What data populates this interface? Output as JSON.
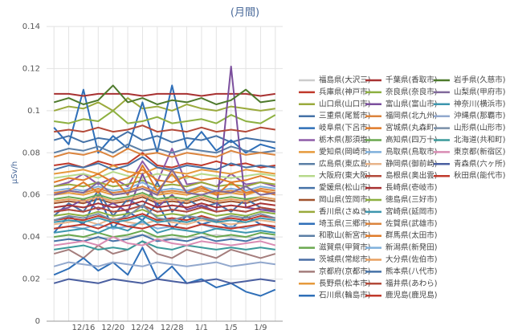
{
  "chart_data": {
    "type": "line",
    "title": "(月間)",
    "y_label": "μSv/h",
    "categories": [
      null,
      null,
      "12/16",
      null,
      "12/20",
      null,
      "12/24",
      null,
      "12/28",
      null,
      "1/1",
      null,
      "1/5",
      null,
      "1/9",
      null
    ],
    "ylim": [
      0,
      0.14
    ],
    "yticks": [
      0,
      0.02,
      0.04,
      0.06,
      0.08,
      0.1,
      0.12,
      0.14
    ],
    "grid": true,
    "series": [
      {
        "name": "福島県(大沢三)",
        "color": "#cccccc",
        "values": [
          0.04,
          0.041,
          0.04,
          0.039,
          0.04,
          0.04,
          0.041,
          0.04,
          0.039,
          0.04,
          0.04,
          0.041,
          0.04,
          0.04,
          0.039,
          0.04
        ]
      },
      {
        "name": "兵庫県(神戸市)",
        "color": "#c0392b",
        "values": [
          0.074,
          0.075,
          0.073,
          0.076,
          0.074,
          0.075,
          0.08,
          0.074,
          0.073,
          0.075,
          0.074,
          0.076,
          0.074,
          0.075,
          0.073,
          0.074
        ]
      },
      {
        "name": "山口県(山口市)",
        "color": "#9aaa3c",
        "values": [
          0.1,
          0.102,
          0.101,
          0.104,
          0.1,
          0.106,
          0.101,
          0.102,
          0.1,
          0.103,
          0.101,
          0.1,
          0.102,
          0.101,
          0.1,
          0.101
        ]
      },
      {
        "name": "三重県(尾鷲市)",
        "color": "#4572a7",
        "values": [
          0.086,
          0.088,
          0.085,
          0.087,
          0.086,
          0.09,
          0.086,
          0.088,
          0.085,
          0.087,
          0.086,
          0.088,
          0.085,
          0.087,
          0.086,
          0.085
        ]
      },
      {
        "name": "岐阜県(下呂市)",
        "color": "#2f6fb8",
        "values": [
          0.092,
          0.084,
          0.11,
          0.08,
          0.088,
          0.082,
          0.104,
          0.08,
          0.112,
          0.082,
          0.09,
          0.081,
          0.086,
          0.08,
          0.084,
          0.082
        ]
      },
      {
        "name": "栃木県(那須塩)",
        "color": "#8e5ca8",
        "values": [
          0.064,
          0.066,
          0.07,
          0.065,
          0.068,
          0.064,
          0.076,
          0.066,
          0.082,
          0.065,
          0.066,
          0.064,
          0.07,
          0.065,
          0.066,
          0.064
        ]
      },
      {
        "name": "愛知県(岡崎市)",
        "color": "#e69a3c",
        "values": [
          0.07,
          0.071,
          0.072,
          0.07,
          0.074,
          0.071,
          0.07,
          0.073,
          0.071,
          0.07,
          0.072,
          0.071,
          0.07,
          0.072,
          0.071,
          0.07
        ]
      },
      {
        "name": "広島県(東広島)",
        "color": "#5b7fa6",
        "values": [
          0.08,
          0.082,
          0.081,
          0.083,
          0.08,
          0.084,
          0.081,
          0.082,
          0.08,
          0.082,
          0.081,
          0.08,
          0.083,
          0.081,
          0.08,
          0.081
        ]
      },
      {
        "name": "大阪府(東大阪)",
        "color": "#b7d98b",
        "values": [
          0.068,
          0.069,
          0.07,
          0.068,
          0.071,
          0.069,
          0.068,
          0.07,
          0.069,
          0.068,
          0.07,
          0.069,
          0.068,
          0.069,
          0.07,
          0.069
        ]
      },
      {
        "name": "愛媛県(松山市)",
        "color": "#4572a7",
        "values": [
          0.072,
          0.074,
          0.073,
          0.075,
          0.072,
          0.074,
          0.078,
          0.073,
          0.072,
          0.074,
          0.073,
          0.072,
          0.075,
          0.073,
          0.074,
          0.073
        ]
      },
      {
        "name": "岡山県(笠岡市)",
        "color": "#a0522d",
        "values": [
          0.056,
          0.057,
          0.056,
          0.058,
          0.056,
          0.057,
          0.059,
          0.056,
          0.057,
          0.056,
          0.058,
          0.056,
          0.057,
          0.056,
          0.058,
          0.057
        ]
      },
      {
        "name": "香川県(さぬき)",
        "color": "#9aaa3c",
        "values": [
          0.064,
          0.065,
          0.064,
          0.066,
          0.064,
          0.065,
          0.067,
          0.064,
          0.065,
          0.064,
          0.066,
          0.064,
          0.065,
          0.064,
          0.066,
          0.065
        ]
      },
      {
        "name": "埼玉県(三郷市)",
        "color": "#2f6fb8",
        "values": [
          0.042,
          0.05,
          0.046,
          0.06,
          0.044,
          0.052,
          0.048,
          0.056,
          0.044,
          0.05,
          0.046,
          0.048,
          0.044,
          0.05,
          0.046,
          0.044
        ]
      },
      {
        "name": "和歌山(新宮市)",
        "color": "#5b7fa6",
        "values": [
          0.052,
          0.053,
          0.052,
          0.054,
          0.052,
          0.053,
          0.055,
          0.052,
          0.053,
          0.052,
          0.054,
          0.052,
          0.053,
          0.052,
          0.054,
          0.053
        ]
      },
      {
        "name": "滋賀県(甲賀市)",
        "color": "#6aa84f",
        "values": [
          0.04,
          0.041,
          0.04,
          0.042,
          0.04,
          0.041,
          0.043,
          0.04,
          0.041,
          0.04,
          0.042,
          0.04,
          0.041,
          0.04,
          0.042,
          0.041
        ]
      },
      {
        "name": "茨城県(常総市)",
        "color": "#4a6fa5",
        "values": [
          0.05,
          0.056,
          0.052,
          0.062,
          0.05,
          0.058,
          0.054,
          0.066,
          0.052,
          0.058,
          0.054,
          0.056,
          0.052,
          0.058,
          0.054,
          0.052
        ]
      },
      {
        "name": "京都府(京都市)",
        "color": "#a47d7c",
        "values": [
          0.032,
          0.034,
          0.03,
          0.036,
          0.032,
          0.034,
          0.038,
          0.032,
          0.03,
          0.034,
          0.032,
          0.03,
          0.034,
          0.032,
          0.03,
          0.032
        ]
      },
      {
        "name": "長野県(松本市)",
        "color": "#e69a3c",
        "values": [
          0.06,
          0.061,
          0.06,
          0.062,
          0.06,
          0.061,
          0.063,
          0.06,
          0.061,
          0.06,
          0.062,
          0.06,
          0.061,
          0.06,
          0.062,
          0.061
        ]
      },
      {
        "name": "石川県(輪島市)",
        "color": "#2f6fb8",
        "values": [
          0.022,
          0.025,
          0.03,
          0.024,
          0.028,
          0.022,
          0.035,
          0.02,
          0.026,
          0.018,
          0.02,
          0.016,
          0.018,
          0.014,
          0.012,
          0.015
        ]
      },
      {
        "name": "千葉県(香取市)",
        "color": "#a83232",
        "values": [
          0.108,
          0.108,
          0.107,
          0.108,
          0.108,
          0.108,
          0.107,
          0.108,
          0.108,
          0.108,
          0.107,
          0.108,
          0.108,
          0.108,
          0.107,
          0.108
        ]
      },
      {
        "name": "奈良県(奈良市)",
        "color": "#8db040",
        "values": [
          0.095,
          0.094,
          0.096,
          0.095,
          0.1,
          0.094,
          0.095,
          0.097,
          0.094,
          0.095,
          0.096,
          0.094,
          0.098,
          0.095,
          0.094,
          0.098
        ]
      },
      {
        "name": "富山県(富山市)",
        "color": "#7b4f9d",
        "values": [
          0.052,
          0.054,
          0.058,
          0.053,
          0.056,
          0.052,
          0.07,
          0.054,
          0.06,
          0.053,
          0.055,
          0.052,
          0.121,
          0.054,
          0.053,
          0.052
        ]
      },
      {
        "name": "福岡県(北九州)",
        "color": "#db843d",
        "values": [
          0.078,
          0.08,
          0.079,
          0.081,
          0.078,
          0.082,
          0.079,
          0.08,
          0.078,
          0.08,
          0.079,
          0.078,
          0.081,
          0.079,
          0.08,
          0.079
        ]
      },
      {
        "name": "宮城県(丸森町)",
        "color": "#e07b2a",
        "values": [
          0.066,
          0.068,
          0.067,
          0.07,
          0.066,
          0.068,
          0.072,
          0.067,
          0.066,
          0.069,
          0.067,
          0.068,
          0.066,
          0.067,
          0.069,
          0.067
        ]
      },
      {
        "name": "高知県(四万十)",
        "color": "#6aa84f",
        "values": [
          0.058,
          0.059,
          0.058,
          0.06,
          0.058,
          0.059,
          0.061,
          0.058,
          0.059,
          0.058,
          0.06,
          0.058,
          0.059,
          0.058,
          0.059,
          0.058
        ]
      },
      {
        "name": "鳥取県(鳥取市)",
        "color": "#7fb0dc",
        "values": [
          0.062,
          0.063,
          0.062,
          0.064,
          0.062,
          0.063,
          0.066,
          0.062,
          0.063,
          0.062,
          0.064,
          0.062,
          0.063,
          0.062,
          0.064,
          0.063
        ]
      },
      {
        "name": "静岡県(御前崎)",
        "color": "#e8b48a",
        "values": [
          0.046,
          0.047,
          0.048,
          0.046,
          0.049,
          0.047,
          0.046,
          0.048,
          0.047,
          0.046,
          0.048,
          0.047,
          0.046,
          0.047,
          0.048,
          0.047
        ]
      },
      {
        "name": "島根県(奥出雲)",
        "color": "#b34a3a",
        "values": [
          0.09,
          0.091,
          0.09,
          0.092,
          0.09,
          0.091,
          0.093,
          0.09,
          0.091,
          0.09,
          0.092,
          0.09,
          0.091,
          0.09,
          0.092,
          0.091
        ]
      },
      {
        "name": "長崎県(壱岐市)",
        "color": "#a83232",
        "values": [
          0.054,
          0.055,
          0.054,
          0.056,
          0.054,
          0.055,
          0.057,
          0.054,
          0.055,
          0.054,
          0.056,
          0.054,
          0.055,
          0.054,
          0.056,
          0.055
        ]
      },
      {
        "name": "徳島県(三好市)",
        "color": "#8db040",
        "values": [
          0.05,
          0.051,
          0.05,
          0.052,
          0.05,
          0.051,
          0.053,
          0.05,
          0.051,
          0.05,
          0.052,
          0.05,
          0.051,
          0.05,
          0.052,
          0.051
        ]
      },
      {
        "name": "宮崎県(延岡市)",
        "color": "#3d96ae",
        "values": [
          0.047,
          0.048,
          0.047,
          0.049,
          0.047,
          0.048,
          0.05,
          0.047,
          0.048,
          0.047,
          0.049,
          0.047,
          0.048,
          0.047,
          0.049,
          0.048
        ]
      },
      {
        "name": "佐賀県(武雄市)",
        "color": "#db843d",
        "values": [
          0.061,
          0.062,
          0.061,
          0.063,
          0.061,
          0.062,
          0.064,
          0.061,
          0.062,
          0.061,
          0.063,
          0.061,
          0.062,
          0.061,
          0.063,
          0.062
        ]
      },
      {
        "name": "群馬県(太田市)",
        "color": "#e07b2a",
        "values": [
          0.06,
          0.062,
          0.066,
          0.061,
          0.068,
          0.06,
          0.074,
          0.062,
          0.07,
          0.061,
          0.064,
          0.06,
          0.066,
          0.061,
          0.062,
          0.06
        ]
      },
      {
        "name": "新潟県(新発田)",
        "color": "#7fb0dc",
        "values": [
          0.044,
          0.045,
          0.044,
          0.046,
          0.044,
          0.045,
          0.047,
          0.044,
          0.045,
          0.044,
          0.046,
          0.044,
          0.045,
          0.044,
          0.046,
          0.045
        ]
      },
      {
        "name": "大分県(佐伯市)",
        "color": "#e8a060",
        "values": [
          0.057,
          0.058,
          0.057,
          0.059,
          0.057,
          0.058,
          0.06,
          0.057,
          0.058,
          0.057,
          0.059,
          0.057,
          0.058,
          0.057,
          0.059,
          0.058
        ]
      },
      {
        "name": "熊本県(八代市)",
        "color": "#4572a7",
        "values": [
          0.038,
          0.039,
          0.038,
          0.04,
          0.038,
          0.039,
          0.041,
          0.038,
          0.039,
          0.038,
          0.04,
          0.038,
          0.039,
          0.038,
          0.04,
          0.039
        ]
      },
      {
        "name": "福井県(あわら)",
        "color": "#b34a3a",
        "values": [
          0.052,
          0.053,
          0.052,
          0.054,
          0.052,
          0.053,
          0.055,
          0.052,
          0.053,
          0.052,
          0.054,
          0.052,
          0.053,
          0.052,
          0.054,
          0.053
        ]
      },
      {
        "name": "鹿児島(鹿児島)",
        "color": "#c0392b",
        "values": [
          0.048,
          0.049,
          0.048,
          0.05,
          0.048,
          0.049,
          0.051,
          0.048,
          0.049,
          0.048,
          0.05,
          0.048,
          0.049,
          0.048,
          0.05,
          0.049
        ]
      },
      {
        "name": "岩手県(久慈市)",
        "color": "#4e7a2c",
        "values": [
          0.104,
          0.106,
          0.103,
          0.105,
          0.112,
          0.104,
          0.106,
          0.103,
          0.105,
          0.104,
          0.106,
          0.103,
          0.105,
          0.11,
          0.104,
          0.105
        ]
      },
      {
        "name": "山梨県(甲府市)",
        "color": "#80699b",
        "values": [
          0.06,
          0.062,
          0.061,
          0.066,
          0.06,
          0.061,
          0.063,
          0.06,
          0.072,
          0.061,
          0.06,
          0.062,
          0.061,
          0.064,
          0.06,
          0.061
        ]
      },
      {
        "name": "神奈川(横浜市)",
        "color": "#3d96ae",
        "values": [
          0.042,
          0.043,
          0.044,
          0.042,
          0.045,
          0.043,
          0.048,
          0.042,
          0.044,
          0.043,
          0.042,
          0.044,
          0.043,
          0.042,
          0.043,
          0.042
        ]
      },
      {
        "name": "沖縄県(那覇市)",
        "color": "#92a8cd",
        "values": [
          0.026,
          0.028,
          0.027,
          0.026,
          0.028,
          0.027,
          0.026,
          0.028,
          0.027,
          0.026,
          0.027,
          0.028,
          0.026,
          0.027,
          0.028,
          0.027
        ]
      },
      {
        "name": "山形県(山形市)",
        "color": "#7a8fa8",
        "values": [
          0.048,
          0.05,
          0.049,
          0.051,
          0.048,
          0.05,
          0.055,
          0.049,
          0.048,
          0.05,
          0.049,
          0.048,
          0.05,
          0.049,
          0.051,
          0.049
        ]
      },
      {
        "name": "北海道(共和町)",
        "color": "#3a9a9a",
        "values": [
          0.034,
          0.035,
          0.036,
          0.034,
          0.035,
          0.034,
          0.038,
          0.035,
          0.034,
          0.036,
          0.035,
          0.034,
          0.035,
          0.034,
          0.035,
          0.034
        ]
      },
      {
        "name": "東京都(新宿区)",
        "color": "#d98cb3",
        "values": [
          0.036,
          0.037,
          0.038,
          0.036,
          0.04,
          0.037,
          0.036,
          0.039,
          0.037,
          0.036,
          0.038,
          0.037,
          0.036,
          0.037,
          0.038,
          0.036
        ]
      },
      {
        "name": "青森県(六ヶ所)",
        "color": "#4a5fa0",
        "values": [
          0.018,
          0.02,
          0.019,
          0.018,
          0.02,
          0.019,
          0.018,
          0.02,
          0.019,
          0.018,
          0.019,
          0.02,
          0.018,
          0.019,
          0.02,
          0.019
        ]
      },
      {
        "name": "秋田県(能代市)",
        "color": "#c0392b",
        "values": [
          0.044,
          0.045,
          0.046,
          0.044,
          0.047,
          0.045,
          0.044,
          0.046,
          0.045,
          0.044,
          0.046,
          0.045,
          0.044,
          0.045,
          0.046,
          0.045
        ]
      }
    ]
  }
}
